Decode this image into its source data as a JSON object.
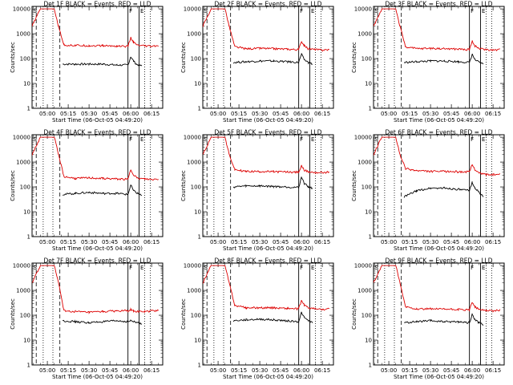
{
  "figure": {
    "x_ticks": [
      "05:00",
      "05:15",
      "05:30",
      "05:45",
      "06:00",
      "06:15"
    ],
    "y_ticks": [
      "1",
      "10",
      "100",
      "1000",
      "10000"
    ],
    "xlabel": "Start Time (06-Oct-05 04:49:20)",
    "ylabel": "Counts/sec",
    "colors": {
      "events": "#000000",
      "lld": "#dd0000"
    },
    "markers": {
      "start": "S",
      "flare": "F",
      "end": "E"
    }
  },
  "chart_data": [
    {
      "type": "line",
      "title": "Det 1F BLACK = Events, RED = LLD",
      "xlabel": "Start Time (06-Oct-05 04:49:20)",
      "ylabel": "Counts/sec",
      "x_ticks": [
        "05:00",
        "05:15",
        "05:30",
        "05:45",
        "06:00",
        "06:15"
      ],
      "y_scale": "log",
      "ylim": [
        1,
        10000
      ],
      "series": [
        {
          "name": "Events",
          "color": "#000000",
          "x": [
            "04:49",
            "05:10",
            "05:11",
            "05:20",
            "05:30",
            "05:40",
            "05:50",
            "05:58",
            "06:00",
            "06:02",
            "06:04",
            "06:08"
          ],
          "y": [
            null,
            null,
            60,
            60,
            60,
            60,
            55,
            55,
            120,
            80,
            60,
            50
          ]
        },
        {
          "name": "LLD",
          "color": "#dd0000",
          "x": [
            "04:49",
            "04:55",
            "05:00",
            "05:05",
            "05:08",
            "05:12",
            "05:20",
            "05:30",
            "05:40",
            "05:50",
            "05:58",
            "06:00",
            "06:02",
            "06:05",
            "06:10",
            "06:15",
            "06:20"
          ],
          "y": [
            2000,
            10000,
            10000,
            10000,
            2000,
            350,
            340,
            330,
            330,
            320,
            310,
            700,
            450,
            340,
            320,
            310,
            330
          ]
        }
      ],
      "markers": [
        {
          "label": "S",
          "x": "04:49"
        },
        {
          "label": "F",
          "x": "05:58"
        },
        {
          "label": "E",
          "x": "06:06"
        }
      ]
    },
    {
      "type": "line",
      "title": "Det 2F BLACK = Events, RED = LLD",
      "xlabel": "Start Time (06-Oct-05 04:49:20)",
      "ylabel": "Counts/sec",
      "x_ticks": [
        "05:00",
        "05:15",
        "05:30",
        "05:45",
        "06:00",
        "06:15"
      ],
      "y_scale": "log",
      "ylim": [
        1,
        10000
      ],
      "series": [
        {
          "name": "Events",
          "color": "#000000",
          "x": [
            "05:11",
            "05:20",
            "05:30",
            "05:40",
            "05:50",
            "05:58",
            "06:00",
            "06:02",
            "06:05",
            "06:08"
          ],
          "y": [
            70,
            75,
            80,
            80,
            75,
            70,
            150,
            90,
            70,
            60
          ]
        },
        {
          "name": "LLD",
          "color": "#dd0000",
          "x": [
            "04:49",
            "04:55",
            "05:00",
            "05:05",
            "05:08",
            "05:12",
            "05:20",
            "05:30",
            "05:40",
            "05:50",
            "05:58",
            "06:00",
            "06:02",
            "06:05",
            "06:10",
            "06:15",
            "06:20"
          ],
          "y": [
            2000,
            10000,
            10000,
            10000,
            2000,
            300,
            250,
            260,
            250,
            240,
            230,
            500,
            330,
            250,
            230,
            220,
            230
          ]
        }
      ],
      "markers": [
        {
          "label": "S",
          "x": "04:49"
        },
        {
          "label": "F",
          "x": "05:58"
        },
        {
          "label": "E",
          "x": "06:06"
        }
      ]
    },
    {
      "type": "line",
      "title": "Det 3F BLACK = Events, RED = LLD",
      "xlabel": "Start Time (06-Oct-05 04:49:20)",
      "ylabel": "Counts/sec",
      "x_ticks": [
        "05:00",
        "05:15",
        "05:30",
        "05:45",
        "06:00",
        "06:15"
      ],
      "y_scale": "log",
      "ylim": [
        1,
        10000
      ],
      "series": [
        {
          "name": "Events",
          "color": "#000000",
          "x": [
            "05:11",
            "05:20",
            "05:30",
            "05:40",
            "05:50",
            "05:58",
            "06:00",
            "06:02",
            "06:05",
            "06:08"
          ],
          "y": [
            70,
            75,
            80,
            80,
            75,
            70,
            150,
            90,
            70,
            60
          ]
        },
        {
          "name": "LLD",
          "color": "#dd0000",
          "x": [
            "04:49",
            "04:55",
            "05:00",
            "05:05",
            "05:08",
            "05:12",
            "05:20",
            "05:30",
            "05:40",
            "05:50",
            "05:58",
            "06:00",
            "06:02",
            "06:05",
            "06:10",
            "06:15",
            "06:20"
          ],
          "y": [
            2000,
            10000,
            10000,
            10000,
            2000,
            300,
            250,
            260,
            250,
            240,
            230,
            500,
            330,
            250,
            230,
            220,
            230
          ]
        }
      ],
      "markers": [
        {
          "label": "S",
          "x": "04:49"
        },
        {
          "label": "F",
          "x": "05:58"
        },
        {
          "label": "E",
          "x": "06:06"
        }
      ]
    },
    {
      "type": "line",
      "title": "Det 4F BLACK = Events, RED = LLD",
      "xlabel": "Start Time (06-Oct-05 04:49:20)",
      "ylabel": "Counts/sec",
      "x_ticks": [
        "05:00",
        "05:15",
        "05:30",
        "05:45",
        "06:00",
        "06:15"
      ],
      "y_scale": "log",
      "ylim": [
        1,
        10000
      ],
      "series": [
        {
          "name": "Events",
          "color": "#000000",
          "x": [
            "05:11",
            "05:20",
            "05:30",
            "05:40",
            "05:50",
            "05:58",
            "06:00",
            "06:02",
            "06:05",
            "06:08"
          ],
          "y": [
            50,
            55,
            60,
            55,
            55,
            50,
            120,
            70,
            55,
            45
          ]
        },
        {
          "name": "LLD",
          "color": "#dd0000",
          "x": [
            "04:49",
            "04:55",
            "05:00",
            "05:05",
            "05:08",
            "05:12",
            "05:20",
            "05:30",
            "05:40",
            "05:50",
            "05:58",
            "06:00",
            "06:02",
            "06:05",
            "06:10",
            "06:15",
            "06:20"
          ],
          "y": [
            2000,
            10000,
            10000,
            10000,
            2000,
            260,
            220,
            230,
            220,
            210,
            200,
            500,
            320,
            220,
            210,
            200,
            210
          ]
        }
      ],
      "markers": [
        {
          "label": "S",
          "x": "04:49"
        },
        {
          "label": "F",
          "x": "05:58"
        },
        {
          "label": "E",
          "x": "06:06"
        }
      ]
    },
    {
      "type": "line",
      "title": "Det 5F BLACK = Events, RED = LLD",
      "xlabel": "Start Time (06-Oct-05 04:49:20)",
      "ylabel": "Counts/sec",
      "x_ticks": [
        "05:00",
        "05:15",
        "05:30",
        "05:45",
        "06:00",
        "06:15"
      ],
      "y_scale": "log",
      "ylim": [
        1,
        10000
      ],
      "series": [
        {
          "name": "Events",
          "color": "#000000",
          "x": [
            "05:11",
            "05:20",
            "05:30",
            "05:40",
            "05:50",
            "05:58",
            "06:00",
            "06:02",
            "06:05",
            "06:08"
          ],
          "y": [
            100,
            110,
            110,
            105,
            100,
            95,
            250,
            140,
            100,
            90
          ]
        },
        {
          "name": "LLD",
          "color": "#dd0000",
          "x": [
            "04:49",
            "04:55",
            "05:00",
            "05:05",
            "05:08",
            "05:12",
            "05:20",
            "05:30",
            "05:40",
            "05:50",
            "05:58",
            "06:00",
            "06:02",
            "06:05",
            "06:10",
            "06:15",
            "06:20"
          ],
          "y": [
            2000,
            10000,
            10000,
            10000,
            2000,
            500,
            420,
            420,
            410,
            400,
            390,
            700,
            480,
            400,
            380,
            380,
            390
          ]
        }
      ],
      "markers": [
        {
          "label": "S",
          "x": "04:49"
        },
        {
          "label": "F",
          "x": "05:58"
        },
        {
          "label": "E",
          "x": "06:06"
        }
      ]
    },
    {
      "type": "line",
      "title": "Det 6F BLACK = Events, RED = LLD",
      "xlabel": "Start Time (06-Oct-05 04:49:20)",
      "ylabel": "Counts/sec",
      "x_ticks": [
        "05:00",
        "05:15",
        "05:30",
        "05:45",
        "06:00",
        "06:15"
      ],
      "y_scale": "log",
      "ylim": [
        1,
        10000
      ],
      "series": [
        {
          "name": "Events",
          "color": "#000000",
          "x": [
            "05:11",
            "05:20",
            "05:30",
            "05:40",
            "05:50",
            "05:58",
            "06:00",
            "06:02",
            "06:05",
            "06:08"
          ],
          "y": [
            40,
            70,
            90,
            90,
            80,
            70,
            160,
            90,
            60,
            40
          ]
        },
        {
          "name": "LLD",
          "color": "#dd0000",
          "x": [
            "04:49",
            "04:55",
            "05:00",
            "05:05",
            "05:08",
            "05:12",
            "05:20",
            "05:30",
            "05:40",
            "05:50",
            "05:58",
            "06:00",
            "06:02",
            "06:05",
            "06:10",
            "06:15",
            "06:20"
          ],
          "y": [
            2000,
            10000,
            10000,
            10000,
            2000,
            550,
            450,
            420,
            420,
            410,
            400,
            800,
            500,
            360,
            320,
            310,
            320
          ]
        }
      ],
      "markers": [
        {
          "label": "S",
          "x": "04:49"
        },
        {
          "label": "F",
          "x": "05:58"
        },
        {
          "label": "E",
          "x": "06:06"
        }
      ]
    },
    {
      "type": "line",
      "title": "Det 7F BLACK = Events, RED = LLD",
      "xlabel": "Start Time (06-Oct-05 04:49:20)",
      "ylabel": "Counts/sec",
      "x_ticks": [
        "05:00",
        "05:15",
        "05:30",
        "05:45",
        "06:00",
        "06:15"
      ],
      "y_scale": "log",
      "ylim": [
        1,
        10000
      ],
      "series": [
        {
          "name": "Events",
          "color": "#000000",
          "x": [
            "05:11",
            "05:20",
            "05:30",
            "05:40",
            "05:50",
            "05:58",
            "06:00",
            "06:02",
            "06:05",
            "06:08",
            "06:15",
            "06:20"
          ],
          "y": [
            60,
            55,
            50,
            55,
            60,
            55,
            60,
            55,
            50,
            45,
            null,
            null
          ]
        },
        {
          "name": "LLD",
          "color": "#dd0000",
          "x": [
            "04:49",
            "04:55",
            "05:00",
            "05:05",
            "05:08",
            "05:12",
            "05:20",
            "05:30",
            "05:40",
            "05:50",
            "05:58",
            "06:00",
            "06:02",
            "06:05",
            "06:10",
            "06:15",
            "06:20"
          ],
          "y": [
            2000,
            10000,
            10000,
            10000,
            2000,
            150,
            140,
            130,
            140,
            150,
            150,
            170,
            150,
            140,
            140,
            150,
            160
          ]
        }
      ],
      "markers": [
        {
          "label": "S",
          "x": "04:49"
        },
        {
          "label": "F",
          "x": "05:58"
        },
        {
          "label": "E",
          "x": "06:06"
        }
      ]
    },
    {
      "type": "line",
      "title": "Det 8F BLACK = Events, RED = LLD",
      "xlabel": "Start Time (06-Oct-05 04:49:20)",
      "ylabel": "Counts/sec",
      "x_ticks": [
        "05:00",
        "05:15",
        "05:30",
        "05:45",
        "06:00",
        "06:15"
      ],
      "y_scale": "log",
      "ylim": [
        1,
        10000
      ],
      "series": [
        {
          "name": "Events",
          "color": "#000000",
          "x": [
            "05:11",
            "05:20",
            "05:30",
            "05:40",
            "05:50",
            "05:58",
            "06:00",
            "06:02",
            "06:05",
            "06:08"
          ],
          "y": [
            60,
            65,
            70,
            65,
            60,
            55,
            130,
            80,
            60,
            50
          ]
        },
        {
          "name": "LLD",
          "color": "#dd0000",
          "x": [
            "04:49",
            "04:55",
            "05:00",
            "05:05",
            "05:08",
            "05:12",
            "05:20",
            "05:30",
            "05:40",
            "05:50",
            "05:58",
            "06:00",
            "06:02",
            "06:05",
            "06:10",
            "06:15",
            "06:20"
          ],
          "y": [
            2000,
            10000,
            10000,
            10000,
            2000,
            250,
            200,
            200,
            200,
            190,
            180,
            400,
            260,
            200,
            180,
            170,
            180
          ]
        }
      ],
      "markers": [
        {
          "label": "S",
          "x": "04:49"
        },
        {
          "label": "F",
          "x": "05:58"
        },
        {
          "label": "E",
          "x": "06:06"
        }
      ]
    },
    {
      "type": "line",
      "title": "Det 9F BLACK = Events, RED = LLD",
      "xlabel": "Start Time (06-Oct-05 04:49:20)",
      "ylabel": "Counts/sec",
      "x_ticks": [
        "05:00",
        "05:15",
        "05:30",
        "05:45",
        "06:00",
        "06:15"
      ],
      "y_scale": "log",
      "ylim": [
        1,
        10000
      ],
      "series": [
        {
          "name": "Events",
          "color": "#000000",
          "x": [
            "05:11",
            "05:20",
            "05:30",
            "05:40",
            "05:50",
            "05:58",
            "06:00",
            "06:02",
            "06:05",
            "06:08"
          ],
          "y": [
            50,
            55,
            60,
            55,
            55,
            50,
            110,
            65,
            50,
            40
          ]
        },
        {
          "name": "LLD",
          "color": "#dd0000",
          "x": [
            "04:49",
            "04:55",
            "05:00",
            "05:05",
            "05:08",
            "05:12",
            "05:20",
            "05:30",
            "05:40",
            "05:50",
            "05:58",
            "06:00",
            "06:02",
            "06:05",
            "06:10",
            "06:15",
            "06:20"
          ],
          "y": [
            2000,
            10000,
            10000,
            10000,
            2000,
            220,
            180,
            180,
            175,
            170,
            160,
            350,
            220,
            170,
            160,
            150,
            160
          ]
        }
      ],
      "markers": [
        {
          "label": "S",
          "x": "04:49"
        },
        {
          "label": "F",
          "x": "05:58"
        },
        {
          "label": "E",
          "x": "06:06"
        }
      ]
    }
  ]
}
